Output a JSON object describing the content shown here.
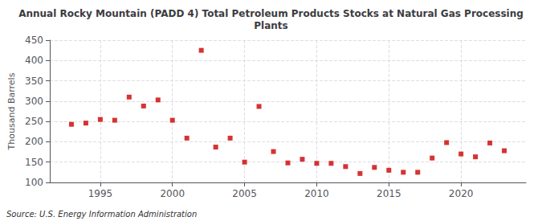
{
  "chart_data": {
    "type": "scatter",
    "title": "Annual Rocky Mountain (PADD 4) Total Petroleum Products Stocks at Natural Gas Processing\nPlants",
    "ylabel": "Thousand Barrels",
    "annotations": [
      "Source: U.S. Energy Information Administration"
    ],
    "x": [
      1993,
      1994,
      1995,
      1996,
      1997,
      1998,
      1999,
      2000,
      2001,
      2002,
      2003,
      2004,
      2005,
      2006,
      2007,
      2008,
      2009,
      2010,
      2011,
      2012,
      2013,
      2014,
      2015,
      2016,
      2017,
      2018,
      2019,
      2020,
      2021,
      2022,
      2023
    ],
    "values": [
      243,
      246,
      255,
      253,
      310,
      288,
      303,
      253,
      209,
      425,
      187,
      209,
      150,
      287,
      176,
      148,
      157,
      147,
      147,
      139,
      122,
      137,
      130,
      125,
      125,
      160,
      198,
      170,
      163,
      197,
      178
    ],
    "color": "#cc0000",
    "marker": "square",
    "xlim": [
      1991.5,
      2024.5
    ],
    "xticks": [
      1995,
      2000,
      2005,
      2010,
      2015,
      2020
    ],
    "ylim": [
      100,
      450
    ],
    "yticks": [
      100,
      150,
      200,
      250,
      300,
      350,
      400,
      450
    ],
    "grid": true
  }
}
